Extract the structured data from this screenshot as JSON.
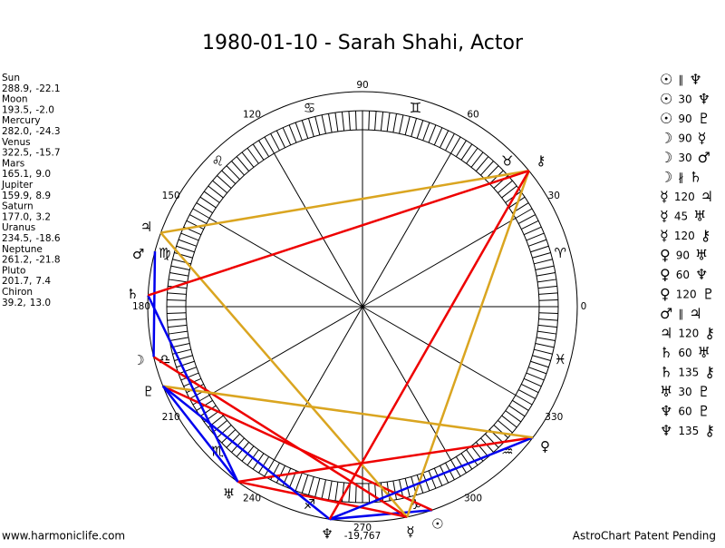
{
  "chart_data": {
    "type": "astrochart",
    "title": "1980-01-10 - Sarah Shahi, Actor",
    "planets": [
      {
        "name": "Sun",
        "glyph": "☉",
        "longitude": 288.9,
        "longitude_label": "288.9,",
        "declination": -22.1
      },
      {
        "name": "Moon",
        "glyph": "☽",
        "longitude": 193.5,
        "longitude_label": "193.5,",
        "declination": -2.0,
        "declination_label": "-2.0"
      },
      {
        "name": "Mercury",
        "glyph": "☿",
        "longitude": 282.0,
        "longitude_label": "282.0,",
        "declination": -24.3
      },
      {
        "name": "Venus",
        "glyph": "♀",
        "longitude": 322.5,
        "longitude_label": "322.5,",
        "declination": -15.7
      },
      {
        "name": "Mars",
        "glyph": "♂",
        "longitude": 165.1,
        "longitude_label": "165.1,",
        "declination": 9.0,
        "declination_label": "9.0"
      },
      {
        "name": "Jupiter",
        "glyph": "♃",
        "longitude": 159.9,
        "longitude_label": "159.9,",
        "declination": 8.9
      },
      {
        "name": "Saturn",
        "glyph": "♄",
        "longitude": 177.0,
        "longitude_label": "177.0,",
        "declination": 3.2
      },
      {
        "name": "Uranus",
        "glyph": "♅",
        "longitude": 234.5,
        "longitude_label": "234.5,",
        "declination": -18.6
      },
      {
        "name": "Neptune",
        "glyph": "♆",
        "longitude": 261.2,
        "longitude_label": "261.2,",
        "declination": -21.8
      },
      {
        "name": "Pluto",
        "glyph": "♇",
        "longitude": 201.7,
        "longitude_label": "201.7,",
        "declination": 7.4
      },
      {
        "name": "Chiron",
        "glyph": "⚷",
        "longitude": 39.2,
        "longitude_label": "39.2,",
        "declination": 13.0,
        "declination_label": "13.0"
      }
    ],
    "signs": [
      "♈",
      "♉",
      "♊",
      "♋",
      "♌",
      "♍",
      "♎",
      "♏",
      "♐",
      "♑",
      "♒",
      "♓"
    ],
    "degree_labels": [
      0,
      30,
      60,
      90,
      120,
      150,
      180,
      210,
      240,
      270,
      300,
      330
    ],
    "aspects": [
      {
        "from": "☉",
        "aspect": "∥",
        "to": "♆"
      },
      {
        "from": "☉",
        "aspect": "30",
        "to": "♆",
        "color": "#0000ee"
      },
      {
        "from": "☉",
        "aspect": "90",
        "to": "♇",
        "color": "#ee0000"
      },
      {
        "from": "☽",
        "aspect": "90",
        "to": "☿",
        "color": "#ee0000"
      },
      {
        "from": "☽",
        "aspect": "30",
        "to": "♂",
        "color": "#0000ee"
      },
      {
        "from": "☽",
        "aspect": "∦",
        "to": "♄"
      },
      {
        "from": "☿",
        "aspect": "120",
        "to": "♃",
        "color": "#daa520"
      },
      {
        "from": "☿",
        "aspect": "45",
        "to": "♅",
        "color": "#ee0000"
      },
      {
        "from": "☿",
        "aspect": "120",
        "to": "⚷",
        "color": "#daa520"
      },
      {
        "from": "♀",
        "aspect": "90",
        "to": "♅",
        "color": "#ee0000"
      },
      {
        "from": "♀",
        "aspect": "60",
        "to": "♆",
        "color": "#0000ee"
      },
      {
        "from": "♀",
        "aspect": "120",
        "to": "♇",
        "color": "#daa520"
      },
      {
        "from": "♂",
        "aspect": "∥",
        "to": "♃"
      },
      {
        "from": "♃",
        "aspect": "120",
        "to": "⚷",
        "color": "#daa520"
      },
      {
        "from": "♄",
        "aspect": "60",
        "to": "♅",
        "color": "#0000ee"
      },
      {
        "from": "♄",
        "aspect": "135",
        "to": "⚷",
        "color": "#ee0000"
      },
      {
        "from": "♅",
        "aspect": "30",
        "to": "♇",
        "color": "#0000ee"
      },
      {
        "from": "♆",
        "aspect": "60",
        "to": "♇",
        "color": "#0000ee"
      },
      {
        "from": "♆",
        "aspect": "135",
        "to": "⚷",
        "color": "#ee0000"
      }
    ],
    "day_number": "-19,767",
    "footer_left": "www.harmoniclife.com",
    "footer_right": "AstroChart Patent Pending"
  }
}
